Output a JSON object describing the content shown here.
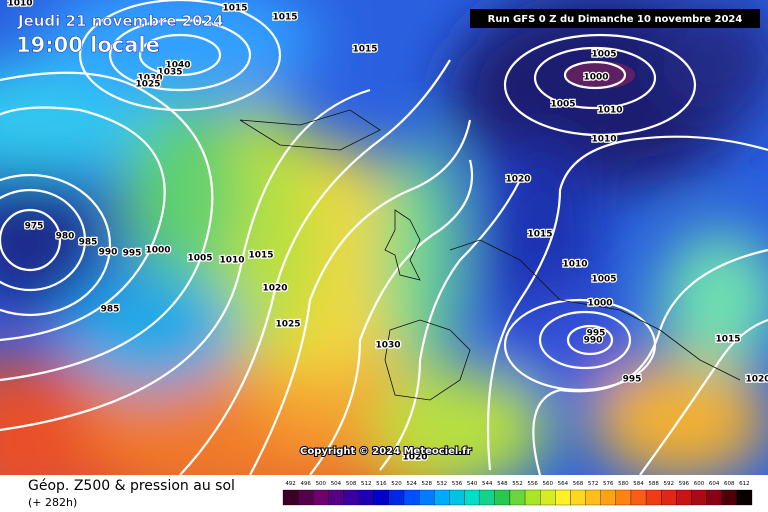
{
  "header": {
    "valid_date": "Jeudi 21 novembre 2024",
    "valid_time": "19:00 locale",
    "run": "Run GFS 0 Z du Dimanche 10 novembre 2024"
  },
  "isobar_labels": [
    "1010",
    "1015",
    "1015",
    "1015",
    "1040",
    "1035",
    "1030",
    "1025",
    "975",
    "980",
    "985",
    "990",
    "995",
    "1000",
    "1005",
    "1010",
    "1015",
    "1020",
    "1025",
    "1030",
    "1020",
    "985",
    "1005",
    "1000",
    "1005",
    "1010",
    "1010",
    "1020",
    "1015",
    "1010",
    "1005",
    "1000",
    "995",
    "990",
    "995",
    "1015",
    "1020"
  ],
  "copyright": "Copyright © 2024 Meteociel.fr",
  "footer": {
    "title": "Géop. Z500 & pression au sol",
    "lead": "(+ 282h)"
  },
  "legend": {
    "levels": [
      492,
      496,
      500,
      504,
      508,
      512,
      516,
      520,
      524,
      528,
      532,
      536,
      540,
      544,
      548,
      552,
      556,
      560,
      564,
      568,
      572,
      576,
      580,
      584,
      588,
      592,
      596,
      600,
      604,
      608,
      612
    ]
  }
}
